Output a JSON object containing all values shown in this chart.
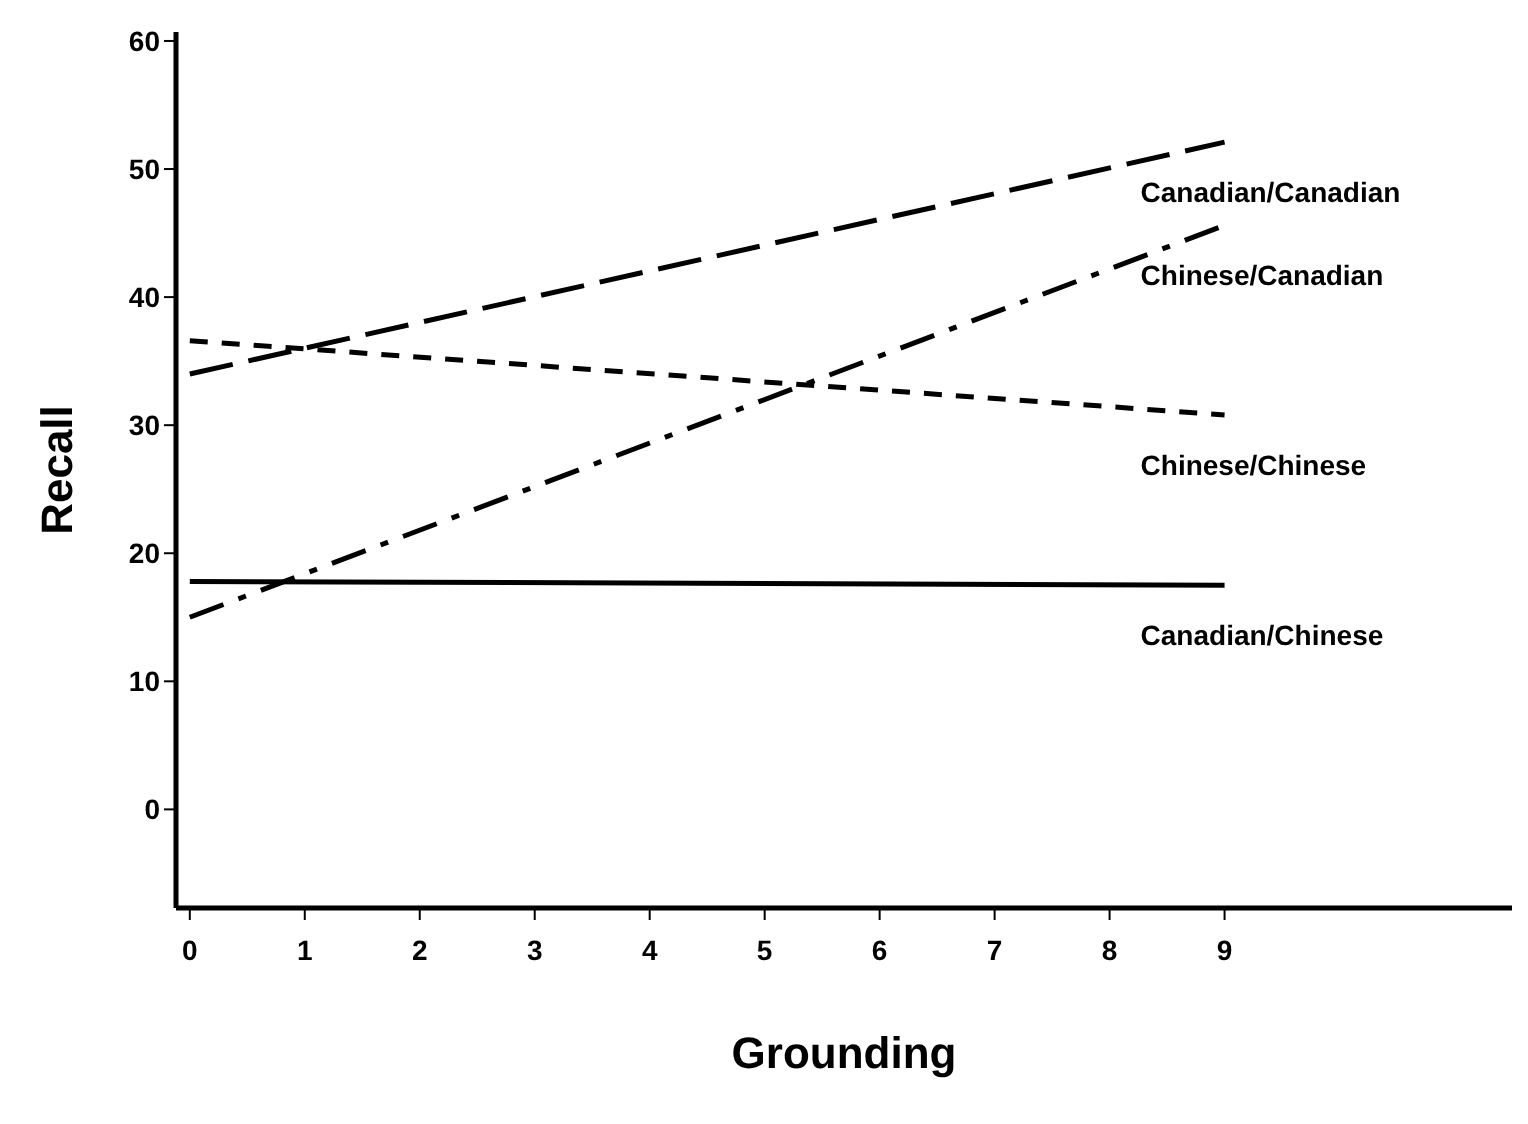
{
  "chart_data": {
    "type": "line",
    "xlabel": "Grounding",
    "ylabel": "Recall",
    "x": [
      0,
      9
    ],
    "series": [
      {
        "name": "Canadian/Canadian",
        "color": "#000000",
        "values": [
          34,
          52.1
        ],
        "line_style": "dashed"
      },
      {
        "name": "Chinese/Canadian",
        "color": "#000000",
        "values": [
          15,
          45.6
        ],
        "line_style": "dashdot"
      },
      {
        "name": "Chinese/Chinese",
        "color": "#000000",
        "values": [
          36.6,
          30.8
        ],
        "line_style": "dotted"
      },
      {
        "name": "Canadian/Chinese",
        "color": "#000000",
        "values": [
          17.8,
          17.5
        ],
        "line_style": "solid"
      }
    ],
    "xlim": [
      -0.12,
      11.5
    ],
    "xticks": [
      0,
      1,
      2,
      3,
      4,
      5,
      6,
      7,
      8,
      9
    ],
    "ylim": [
      -7.7,
      60.7
    ],
    "yticks": [
      0,
      10,
      20,
      30,
      40,
      50,
      60
    ],
    "grid": false,
    "legend": false,
    "marker": "none"
  }
}
